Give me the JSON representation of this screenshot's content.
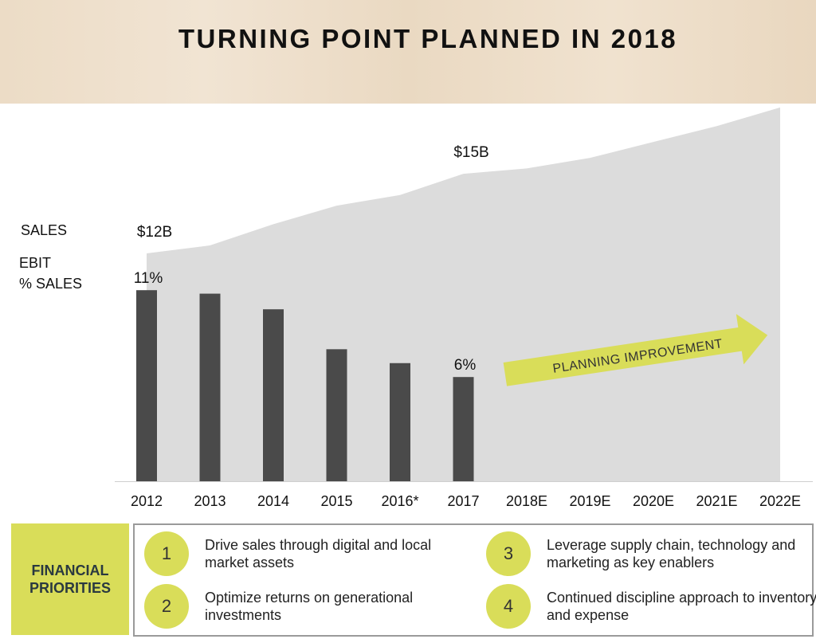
{
  "header": {
    "title": "TURNING POINT PLANNED IN 2018"
  },
  "labels": {
    "sales": "SALES",
    "ebit": "EBIT\n% SALES"
  },
  "chart_data": {
    "type": "bar",
    "categories": [
      "2012",
      "2013",
      "2014",
      "2015",
      "2016*",
      "2017",
      "2018E",
      "2019E",
      "2020E",
      "2021E",
      "2022E"
    ],
    "series": [
      {
        "name": "EBIT % SALES",
        "type": "bar",
        "values": [
          11,
          10.8,
          9.9,
          7.6,
          6.8,
          6,
          null,
          null,
          null,
          null,
          null
        ]
      },
      {
        "name": "SALES",
        "type": "area",
        "values": [
          12,
          12.3,
          13.1,
          13.8,
          14.2,
          15,
          15.2,
          15.6,
          16.2,
          16.8,
          17.5
        ]
      }
    ],
    "data_labels": {
      "sales": [
        {
          "index": 0,
          "text": "$12B"
        },
        {
          "index": 5,
          "text": "$15B"
        }
      ],
      "ebit": [
        {
          "index": 0,
          "text": "11%"
        },
        {
          "index": 5,
          "text": "6%"
        }
      ]
    },
    "annotation": "PLANNING IMPROVEMENT",
    "colors": {
      "bar": "#4a4a4a",
      "area": "#dcdcdc",
      "arrow": "#d9dd59"
    }
  },
  "priorities": {
    "heading": "FINANCIAL\nPRIORITIES",
    "items": [
      {
        "num": "1",
        "text": "Drive sales through digital and local market assets"
      },
      {
        "num": "2",
        "text": "Optimize returns on generational investments"
      },
      {
        "num": "3",
        "text": "Leverage supply chain, technology and marketing as key enablers"
      },
      {
        "num": "4",
        "text": "Continued discipline approach to inventory and expense"
      }
    ]
  }
}
